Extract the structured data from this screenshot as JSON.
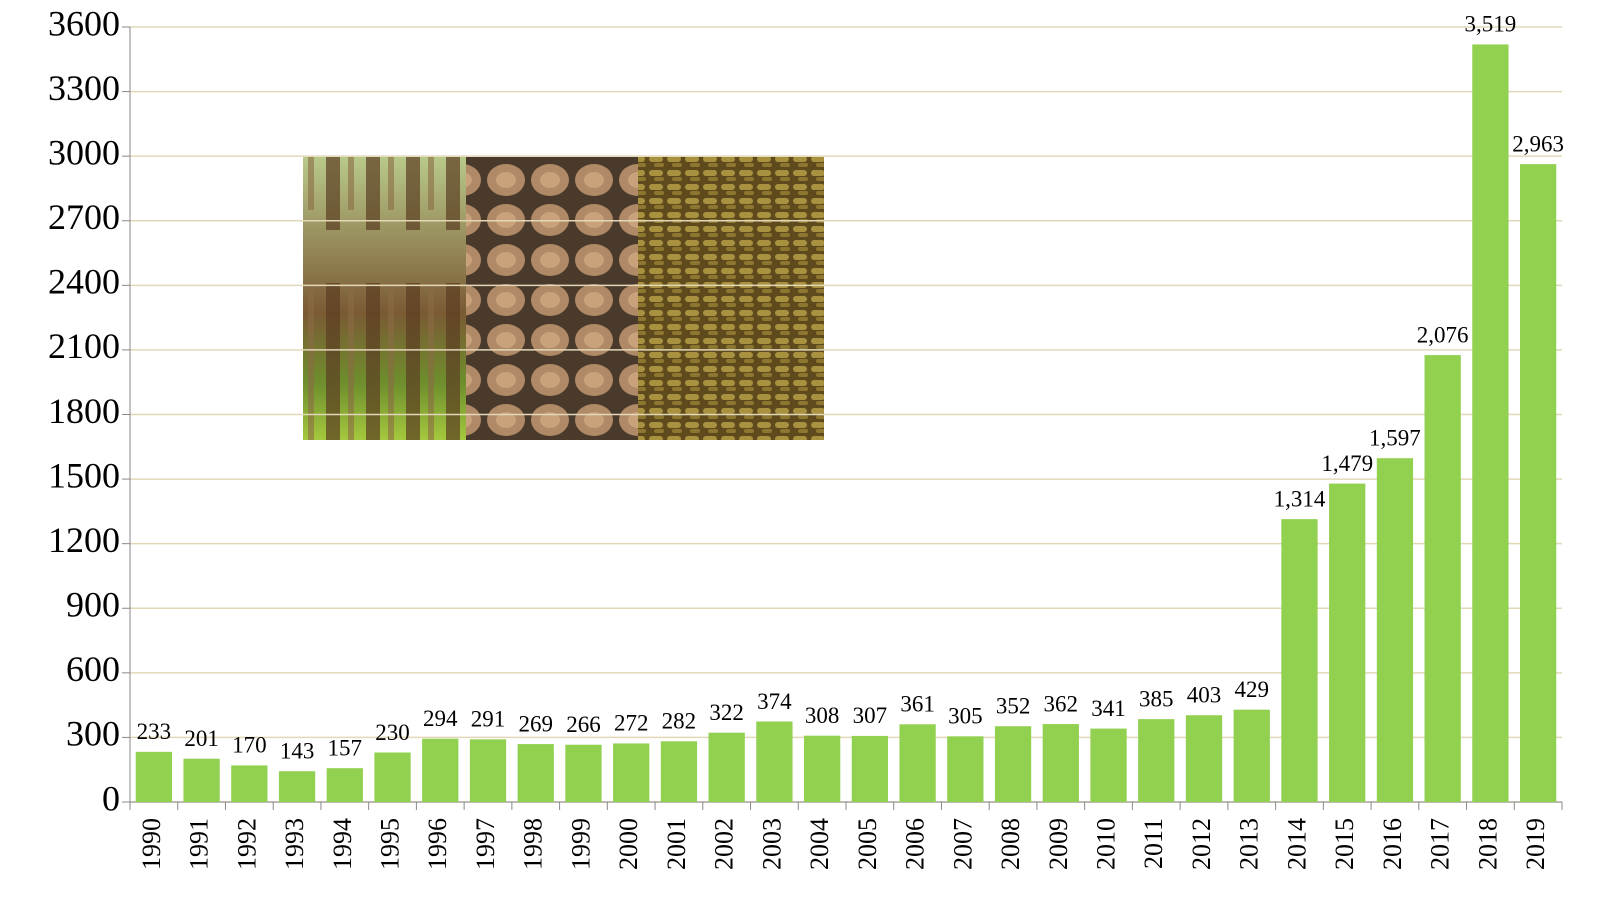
{
  "chart_data": {
    "type": "bar",
    "categories": [
      "1990",
      "1991",
      "1992",
      "1993",
      "1994",
      "1995",
      "1996",
      "1997",
      "1998",
      "1999",
      "2000",
      "2001",
      "2002",
      "2003",
      "2004",
      "2005",
      "2006",
      "2007",
      "2008",
      "2009",
      "2010",
      "2011",
      "2012",
      "2013",
      "2014",
      "2015",
      "2016",
      "2017",
      "2018",
      "2019"
    ],
    "values": [
      233,
      201,
      170,
      143,
      157,
      230,
      294,
      291,
      269,
      266,
      272,
      282,
      322,
      374,
      308,
      307,
      361,
      305,
      352,
      362,
      341,
      385,
      403,
      429,
      1314,
      1479,
      1597,
      2076,
      3519,
      2963
    ],
    "value_labels": [
      "233",
      "201",
      "170",
      "143",
      "157",
      "230",
      "294",
      "291",
      "269",
      "266",
      "272",
      "282",
      "322",
      "374",
      "308",
      "307",
      "361",
      "305",
      "352",
      "362",
      "341",
      "385",
      "403",
      "429",
      "1,314",
      "1,479",
      "1,597",
      "2,076",
      "3,519",
      "2,963"
    ],
    "color": "#92d050",
    "ylim": [
      0,
      3600
    ],
    "yticks": [
      0,
      300,
      600,
      900,
      1200,
      1500,
      1800,
      2100,
      2400,
      2700,
      3000,
      3300,
      3600
    ],
    "grid": true
  }
}
